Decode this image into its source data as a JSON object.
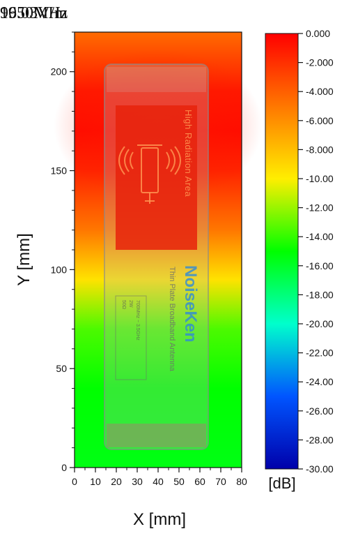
{
  "header": {
    "frequency": "1950MHz",
    "field_strength": "96.03V/m"
  },
  "chart_data": {
    "type": "heatmap",
    "xlabel": "X [mm]",
    "ylabel": "Y [mm]",
    "xlim": [
      0,
      80
    ],
    "ylim": [
      0,
      220
    ],
    "x_ticks": [
      0,
      10,
      20,
      30,
      40,
      50,
      60,
      70,
      80
    ],
    "y_ticks": [
      0,
      50,
      100,
      150,
      200
    ],
    "field_profile_db_by_y": [
      {
        "y": 0,
        "db": -15.5
      },
      {
        "y": 40,
        "db": -15.0
      },
      {
        "y": 70,
        "db": -13.5
      },
      {
        "y": 95,
        "db": -9.5
      },
      {
        "y": 120,
        "db": -5.0
      },
      {
        "y": 150,
        "db": -1.5
      },
      {
        "y": 170,
        "db": -0.5
      },
      {
        "y": 190,
        "db": -1.0
      },
      {
        "y": 220,
        "db": -4.5
      }
    ],
    "colorbar": {
      "unit": "[dB]",
      "min": -30,
      "max": 0,
      "tick_labels": [
        "0.000",
        "-2.000",
        "-4.000",
        "-6.000",
        "-8.000",
        "-10.00",
        "-12.00",
        "-14.00",
        "-16.00",
        "-18.00",
        "-20.00",
        "-22.00",
        "-24.00",
        "-26.00",
        "-28.00",
        "-30.00"
      ],
      "colors": [
        "#ff0000",
        "#ff7700",
        "#ffee00",
        "#00ff00",
        "#00ffcc",
        "#0055ff",
        "#0000aa"
      ]
    },
    "antenna_overlay": {
      "label_high": "High Radiation Area",
      "brand": "NoiseKen",
      "product": "Thin Plate Broadband Antenna",
      "spec_rows": [
        {
          "key": "Frequency",
          "val": "700MHz ~ 3.5GHz"
        },
        {
          "key": "Max. Input",
          "val": "2W"
        },
        {
          "key": "Impedance",
          "val": "50Ω"
        }
      ]
    }
  }
}
